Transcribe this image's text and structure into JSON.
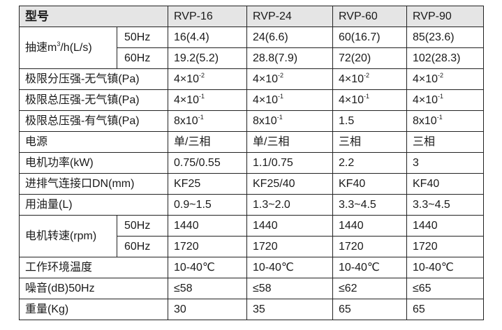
{
  "header": {
    "label": "型号",
    "models": [
      "RVP-16",
      "RVP-24",
      "RVP-60",
      "RVP-90"
    ]
  },
  "pumping_speed": {
    "label_pre": "抽速m",
    "label_sup": "3",
    "label_post": "/h(L/s)",
    "rows": [
      {
        "sub": "50Hz",
        "values": [
          "16(4.4)",
          "24(6.6)",
          "60(16.7)",
          "85(23.6)"
        ]
      },
      {
        "sub": "60Hz",
        "values": [
          "19.2(5.2)",
          "28.8(7.9)",
          "72(20)",
          "102(28.3)"
        ]
      }
    ]
  },
  "ult_partial_no_ballast": {
    "label": "极限分压强-无气镇(Pa)",
    "cells": [
      {
        "base": "4×10",
        "exp": "-2"
      },
      {
        "base": "4×10",
        "exp": "-2"
      },
      {
        "base": "4×10",
        "exp": "-2"
      },
      {
        "base": "4×10",
        "exp": "-2"
      }
    ]
  },
  "ult_total_no_ballast": {
    "label": "极限总压强-无气镇(Pa)",
    "cells": [
      {
        "base": "4×10",
        "exp": "-1"
      },
      {
        "base": "4×10",
        "exp": "-1"
      },
      {
        "base": "4×10",
        "exp": "-1"
      },
      {
        "base": "4×10",
        "exp": "-1"
      }
    ]
  },
  "ult_total_with_ballast": {
    "label": "极限总压强-有气镇(Pa)",
    "cells": [
      {
        "base": "8x10",
        "exp": "-1"
      },
      {
        "base": "8x10",
        "exp": "-1"
      },
      {
        "base": "1.5",
        "exp": ""
      },
      {
        "base": "8x10",
        "exp": "-1"
      }
    ]
  },
  "simple_rows_a": [
    {
      "label": "电源",
      "values": [
        "单/三相",
        "单/三相",
        "三相",
        "三相"
      ]
    },
    {
      "label": "电机功率(kW)",
      "values": [
        "0.75/0.55",
        "1.1/0.75",
        "2.2",
        "3"
      ]
    },
    {
      "label": "进排气连接口DN(mm)",
      "values": [
        "KF25",
        "KF25/40",
        "KF40",
        "KF40"
      ]
    },
    {
      "label": "用油量(L)",
      "values": [
        "0.9~1.5",
        "1.3~2.0",
        "3.3~4.5",
        "3.3~4.5"
      ]
    }
  ],
  "motor_speed": {
    "label": "电机转速(rpm)",
    "rows": [
      {
        "sub": "50Hz",
        "values": [
          "1440",
          "1440",
          "1440",
          "1440"
        ]
      },
      {
        "sub": "60Hz",
        "values": [
          "1720",
          "1720",
          "1720",
          "1720"
        ]
      }
    ]
  },
  "simple_rows_b": [
    {
      "label": "工作环境温度",
      "values": [
        "10-40℃",
        "10-40℃",
        "10-40℃",
        "10-40℃"
      ]
    },
    {
      "label": "噪音(dB)50Hz",
      "values": [
        "≤58",
        "≤58",
        "≤62",
        "≤65"
      ]
    },
    {
      "label": "重量(Kg)",
      "values": [
        "30",
        "35",
        "65",
        "65"
      ]
    }
  ]
}
